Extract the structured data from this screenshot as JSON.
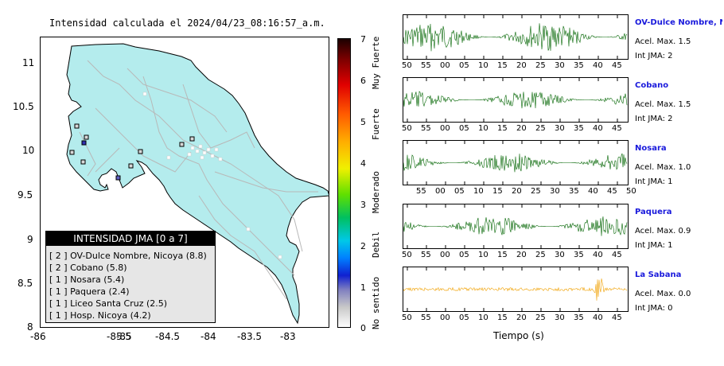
{
  "map": {
    "title": "Intensidad calculada el 2024/04/23_08:16:57_a.m.",
    "x_ticks": [
      "-86",
      "-85.5",
      "-85",
      "-84.5",
      "-84",
      "-83.5",
      "-83"
    ],
    "y_ticks": [
      "11",
      "10.5",
      "10",
      "9.5",
      "9",
      "8.5",
      "8"
    ],
    "colors": {
      "land": "#b4eced",
      "border": "#000000",
      "roads": "#b8b8b8",
      "station": "#000000"
    }
  },
  "legend": {
    "header": "INTENSIDAD JMA [0 a 7]",
    "items": [
      {
        "level": "[ 2 ]",
        "label": "OV-Dulce Nombre, Nicoya (8.8)"
      },
      {
        "level": "[ 2 ]",
        "label": "Cobano (5.8)"
      },
      {
        "level": "[ 1 ]",
        "label": "Nosara (5.4)"
      },
      {
        "level": "[ 1 ]",
        "label": "Paquera (2.4)"
      },
      {
        "level": "[ 1 ]",
        "label": "Liceo Santa Cruz (2.5)"
      },
      {
        "level": "[ 1 ]",
        "label": "Hosp. Nicoya (4.2)"
      }
    ]
  },
  "intensity_scale": {
    "ticks": [
      "7",
      "6",
      "5",
      "4",
      "3",
      "2",
      "1",
      "0"
    ],
    "labels": [
      "Muy Fuerte",
      "Fuerte",
      "Moderado",
      "Debil",
      "No sentido"
    ]
  },
  "waveforms": {
    "xlabel": "Tiempo (s)",
    "stations": [
      {
        "name": "OV-Dulce Nombre, Nicoya",
        "accel": "Acel. Max. 1.5",
        "intensity": "Int JMA: 2",
        "color": "#006400",
        "ticks": [
          "50",
          "55",
          "00",
          "05",
          "10",
          "15",
          "20",
          "25",
          "30",
          "35",
          "40",
          "45"
        ]
      },
      {
        "name": "Cobano",
        "accel": "Acel. Max. 1.5",
        "intensity": "Int JMA: 2",
        "color": "#006400",
        "ticks": [
          "50",
          "55",
          "00",
          "05",
          "10",
          "15",
          "20",
          "25",
          "30",
          "35",
          "40",
          "45"
        ]
      },
      {
        "name": "Nosara",
        "accel": "Acel. Max. 1.0",
        "intensity": "Int JMA: 1",
        "color": "#006400",
        "ticks": [
          "55",
          "00",
          "05",
          "10",
          "15",
          "20",
          "25",
          "30",
          "35",
          "40",
          "45",
          "50"
        ]
      },
      {
        "name": "Paquera",
        "accel": "Acel. Max. 0.9",
        "intensity": "Int JMA: 1",
        "color": "#006400",
        "ticks": [
          "50",
          "55",
          "00",
          "05",
          "10",
          "15",
          "20",
          "25",
          "30",
          "35",
          "40",
          "45"
        ]
      },
      {
        "name": "La Sabana",
        "accel": "Acel. Max. 0.0",
        "intensity": "Int JMA: 0",
        "color": "#f0a000",
        "ticks": [
          "50",
          "55",
          "00",
          "05",
          "10",
          "15",
          "20",
          "25",
          "30",
          "35",
          "40",
          "45"
        ]
      }
    ]
  }
}
